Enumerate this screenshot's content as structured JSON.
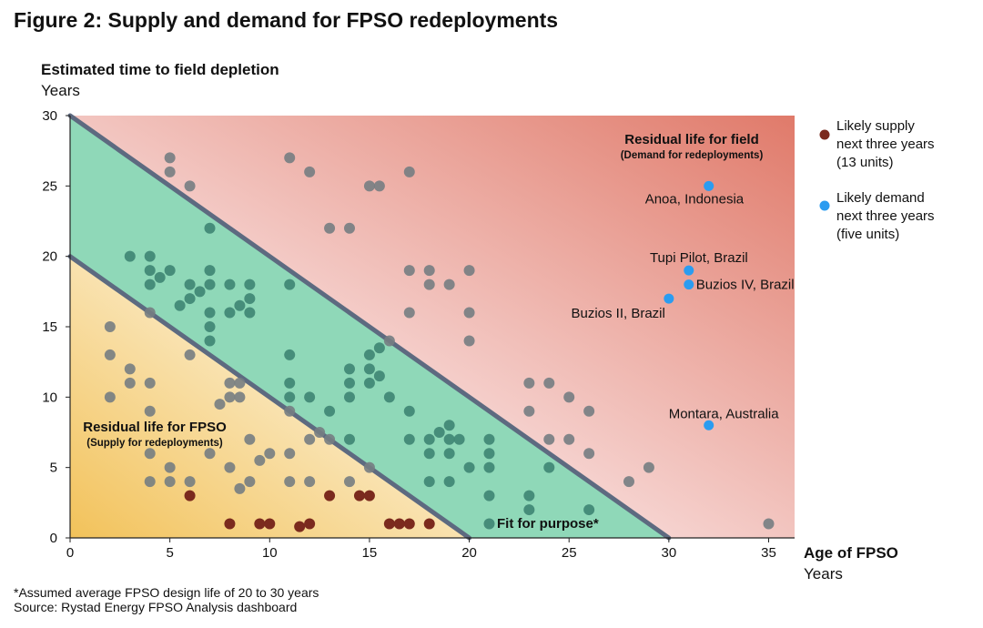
{
  "title": "Figure 2: Supply and demand for FPSO redeployments",
  "footnotes": [
    "*Assumed average FPSO design life of 20 to 30 years",
    "Source: Rystad Energy FPSO Analysis dashboard"
  ],
  "chart_data": {
    "type": "scatter",
    "ylabel": "Estimated time to field depletion",
    "ylabel_unit": "Years",
    "xlabel": "Age of FPSO",
    "xlabel_unit": "Years",
    "xlim": [
      0,
      36.3
    ],
    "ylim": [
      0,
      30
    ],
    "xticks": [
      0,
      5,
      10,
      15,
      20,
      25,
      30,
      35
    ],
    "yticks": [
      0,
      5,
      10,
      15,
      20,
      25,
      30
    ],
    "grid": false,
    "legend_placement": "right",
    "colors": {
      "supply": "#7b2a1e",
      "demand": "#2b9cf0",
      "other": "#767d82",
      "other_in_band": "#3e8573",
      "band": "#8fd8b8",
      "field_region": "#e07a6a",
      "fpso_region": "#f2c25a",
      "boundary": "#5d6a80"
    },
    "boundaries": [
      {
        "from": [
          0,
          30
        ],
        "to": [
          30,
          0
        ]
      },
      {
        "from": [
          0,
          20
        ],
        "to": [
          20,
          0
        ]
      }
    ],
    "regions": {
      "field": {
        "label": "Residual life for field",
        "sublabel": "(Demand for redeployments)"
      },
      "fpso": {
        "label": "Residual life for FPSO",
        "sublabel": "(Supply for redeployments)"
      },
      "band": {
        "label": "Fit for purpose*"
      }
    },
    "series": [
      {
        "name": "Likely supply next three years (13 units)",
        "legend_lines": [
          "Likely supply",
          "next three years",
          "(13 units)"
        ],
        "color": "#7b2a1e",
        "points": [
          [
            6,
            3
          ],
          [
            13,
            3
          ],
          [
            14.5,
            3
          ],
          [
            15,
            3
          ],
          [
            8,
            1
          ],
          [
            9.5,
            1
          ],
          [
            10,
            1
          ],
          [
            11.5,
            0.8
          ],
          [
            12,
            1
          ],
          [
            16,
            1
          ],
          [
            16.5,
            1
          ],
          [
            17,
            1
          ],
          [
            18,
            1
          ]
        ]
      },
      {
        "name": "Likely demand next three years (five units)",
        "legend_lines": [
          "Likely demand",
          "next three years",
          "(five units)"
        ],
        "color": "#2b9cf0",
        "points": [
          {
            "x": 32,
            "y": 25,
            "label": "Anoa, Indonesia"
          },
          {
            "x": 31,
            "y": 19,
            "label": "Tupi Pilot, Brazil"
          },
          {
            "x": 31,
            "y": 18,
            "label": "Buzios IV, Brazil"
          },
          {
            "x": 30,
            "y": 17,
            "label": "Buzios II, Brazil"
          },
          {
            "x": 32,
            "y": 8,
            "label": "Montara, Australia"
          }
        ]
      },
      {
        "color": "#767d82",
        "points": [
          [
            5,
            27
          ],
          [
            5,
            26
          ],
          [
            6,
            25
          ],
          [
            11,
            27
          ],
          [
            12,
            26
          ],
          [
            17,
            26
          ],
          [
            15,
            25
          ],
          [
            15.5,
            25
          ],
          [
            7,
            22
          ],
          [
            13,
            22
          ],
          [
            14,
            22
          ],
          [
            3,
            20
          ],
          [
            4,
            20
          ],
          [
            4,
            19
          ],
          [
            5,
            19
          ],
          [
            4.5,
            18.5
          ],
          [
            4,
            18
          ],
          [
            6,
            18
          ],
          [
            7,
            18
          ],
          [
            8,
            18
          ],
          [
            9,
            18
          ],
          [
            11,
            18
          ],
          [
            7,
            19
          ],
          [
            6.5,
            17.5
          ],
          [
            6,
            17
          ],
          [
            9,
            17
          ],
          [
            8.5,
            16.5
          ],
          [
            5.5,
            16.5
          ],
          [
            7,
            16
          ],
          [
            8,
            16
          ],
          [
            9,
            16
          ],
          [
            4,
            16
          ],
          [
            17,
            19
          ],
          [
            18,
            19
          ],
          [
            18,
            18
          ],
          [
            19,
            18
          ],
          [
            20,
            19
          ],
          [
            20,
            16
          ],
          [
            17,
            16
          ],
          [
            20,
            14
          ],
          [
            2,
            15
          ],
          [
            7,
            15
          ],
          [
            7,
            14
          ],
          [
            2,
            13
          ],
          [
            6,
            13
          ],
          [
            3,
            12
          ],
          [
            3,
            11
          ],
          [
            4,
            11
          ],
          [
            8,
            11
          ],
          [
            8.5,
            11
          ],
          [
            2,
            10
          ],
          [
            8,
            10
          ],
          [
            8.5,
            10
          ],
          [
            7.5,
            9.5
          ],
          [
            4,
            9
          ],
          [
            11,
            13
          ],
          [
            11,
            11
          ],
          [
            11,
            10
          ],
          [
            12,
            10
          ],
          [
            11,
            9
          ],
          [
            13,
            9
          ],
          [
            14,
            12
          ],
          [
            14,
            11
          ],
          [
            14,
            10
          ],
          [
            15,
            13
          ],
          [
            15,
            12
          ],
          [
            15,
            11
          ],
          [
            15.5,
            13.5
          ],
          [
            15.5,
            11.5
          ],
          [
            16,
            14
          ],
          [
            16,
            10
          ],
          [
            17,
            9
          ],
          [
            9,
            7
          ],
          [
            12,
            7
          ],
          [
            12.5,
            7.5
          ],
          [
            13,
            7
          ],
          [
            14,
            7
          ],
          [
            17,
            7
          ],
          [
            4,
            6
          ],
          [
            7,
            6
          ],
          [
            10,
            6
          ],
          [
            9.5,
            5.5
          ],
          [
            11,
            6
          ],
          [
            5,
            5
          ],
          [
            8,
            5
          ],
          [
            15,
            5
          ],
          [
            4,
            4
          ],
          [
            5,
            4
          ],
          [
            6,
            4
          ],
          [
            8.5,
            3.5
          ],
          [
            9,
            4
          ],
          [
            11,
            4
          ],
          [
            12,
            4
          ],
          [
            14,
            4
          ],
          [
            23,
            11
          ],
          [
            24,
            11
          ],
          [
            25,
            10
          ],
          [
            23,
            9
          ],
          [
            26,
            9
          ],
          [
            18,
            7
          ],
          [
            19,
            7
          ],
          [
            19.5,
            7
          ],
          [
            18.5,
            7.5
          ],
          [
            19,
            8
          ],
          [
            21,
            7
          ],
          [
            18,
            6
          ],
          [
            19,
            6
          ],
          [
            21,
            6
          ],
          [
            20,
            5
          ],
          [
            21,
            5
          ],
          [
            18,
            4
          ],
          [
            19,
            4
          ],
          [
            21,
            3
          ],
          [
            23,
            3
          ],
          [
            23,
            2
          ],
          [
            26,
            2
          ],
          [
            21,
            1
          ],
          [
            24,
            7
          ],
          [
            25,
            7
          ],
          [
            26,
            6
          ],
          [
            24,
            5
          ],
          [
            29,
            5
          ],
          [
            28,
            4
          ],
          [
            35,
            1
          ]
        ]
      }
    ]
  }
}
